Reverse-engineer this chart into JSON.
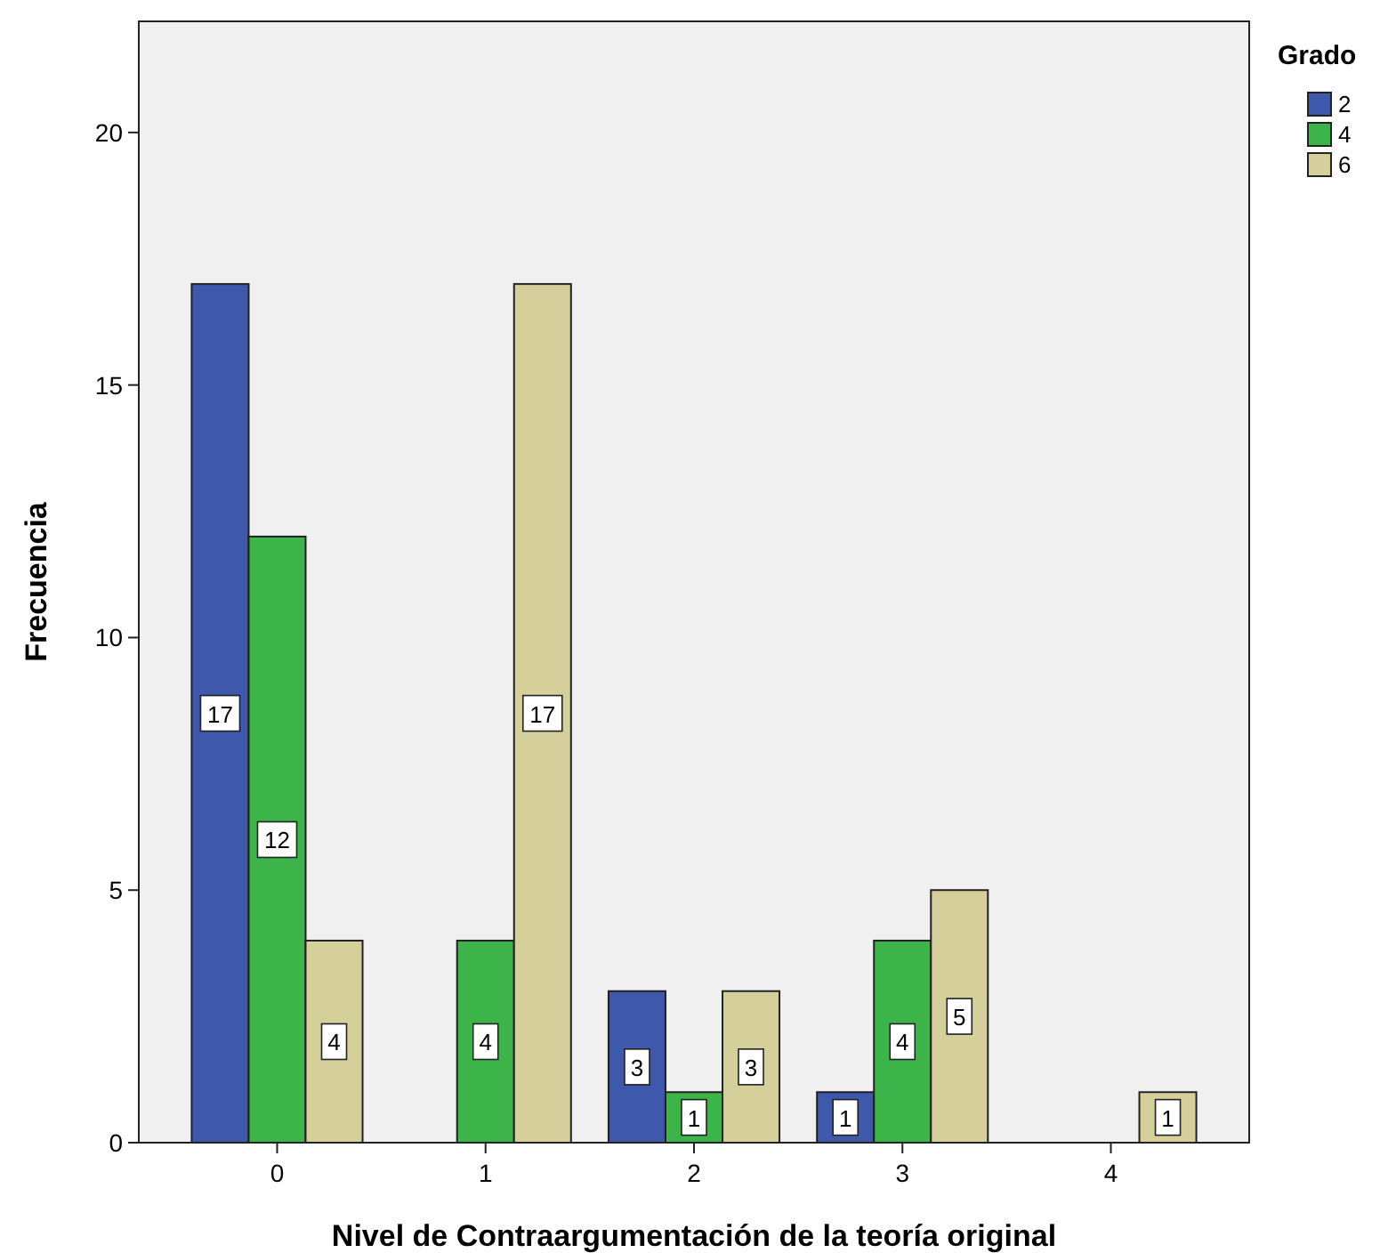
{
  "chart_data": {
    "type": "bar",
    "xlabel": "Nivel de Contraargumentación de la teoría original",
    "ylabel": "Frecuencia",
    "legend_title": "Grado",
    "legend": "top right",
    "data_labels": true,
    "categories": [
      "0",
      "1",
      "2",
      "3",
      "4"
    ],
    "ylim": [
      0,
      22.2
    ],
    "yticks": [
      0,
      5,
      10,
      15,
      20
    ],
    "grid": false,
    "series": [
      {
        "name": "2",
        "color": "#3e58ac",
        "values": [
          17,
          null,
          3,
          1,
          null
        ]
      },
      {
        "name": "4",
        "color": "#3cb44a",
        "values": [
          12,
          4,
          1,
          4,
          null
        ]
      },
      {
        "name": "6",
        "color": "#d5cf9c",
        "values": [
          4,
          17,
          3,
          5,
          1
        ]
      }
    ]
  }
}
